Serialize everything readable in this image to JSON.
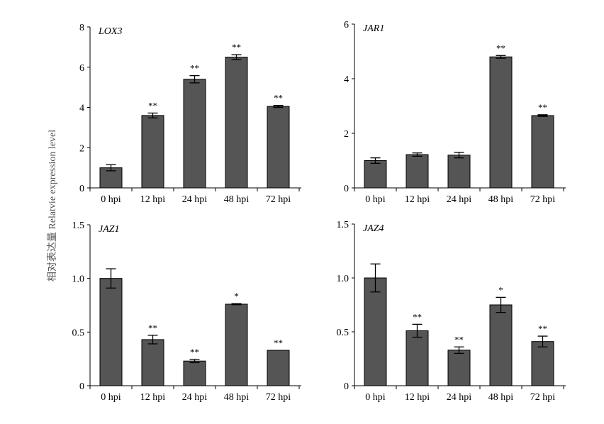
{
  "figure": {
    "ylabel": "相对表达量 Relatvie expression level"
  },
  "chart_data": [
    {
      "type": "bar",
      "title": "LOX3",
      "categories": [
        "0 hpi",
        "12 hpi",
        "24 hpi",
        "48 hpi",
        "72 hpi"
      ],
      "values": [
        1.0,
        3.6,
        5.4,
        6.5,
        4.05
      ],
      "errors": [
        0.15,
        0.12,
        0.18,
        0.12,
        0.05
      ],
      "significance": [
        "",
        "**",
        "**",
        "**",
        "**"
      ],
      "yticks": [
        "0",
        "2",
        "4",
        "6",
        "8"
      ],
      "ylim": [
        0,
        8
      ],
      "bar_color": "#555555",
      "grid": false
    },
    {
      "type": "bar",
      "title": "JAR1",
      "categories": [
        "0 hpi",
        "12 hpi",
        "24 hpi",
        "48 hpi",
        "72 hpi"
      ],
      "values": [
        1.0,
        1.22,
        1.2,
        4.8,
        2.65
      ],
      "errors": [
        0.1,
        0.06,
        0.1,
        0.05,
        0.03
      ],
      "significance": [
        "",
        "",
        "",
        "**",
        "**"
      ],
      "yticks": [
        "0",
        "2",
        "4",
        "6"
      ],
      "ylim": [
        0,
        6
      ],
      "bar_color": "#555555",
      "grid": false
    },
    {
      "type": "bar",
      "title": "JAZ1",
      "categories": [
        "0 hpi",
        "12 hpi",
        "24 hpi",
        "48 hpi",
        "72 hpi"
      ],
      "values": [
        1.0,
        0.43,
        0.23,
        0.76,
        0.33
      ],
      "errors": [
        0.09,
        0.04,
        0.015,
        0.005,
        0.0
      ],
      "significance": [
        "",
        "**",
        "**",
        "*",
        "**"
      ],
      "yticks": [
        "0",
        "0.5",
        "1.0",
        "1.5"
      ],
      "ylim": [
        0,
        1.5
      ],
      "bar_color": "#555555",
      "grid": false
    },
    {
      "type": "bar",
      "title": "JAZ4",
      "categories": [
        "0 hpi",
        "12 hpi",
        "24 hpi",
        "48 hpi",
        "72 hpi"
      ],
      "values": [
        1.0,
        0.51,
        0.33,
        0.75,
        0.41
      ],
      "errors": [
        0.13,
        0.06,
        0.03,
        0.07,
        0.05
      ],
      "significance": [
        "",
        "**",
        "**",
        "*",
        "**"
      ],
      "yticks": [
        "0",
        "0.5",
        "1.0",
        "1.5"
      ],
      "ylim": [
        0,
        1.5
      ],
      "bar_color": "#555555",
      "grid": false
    }
  ]
}
